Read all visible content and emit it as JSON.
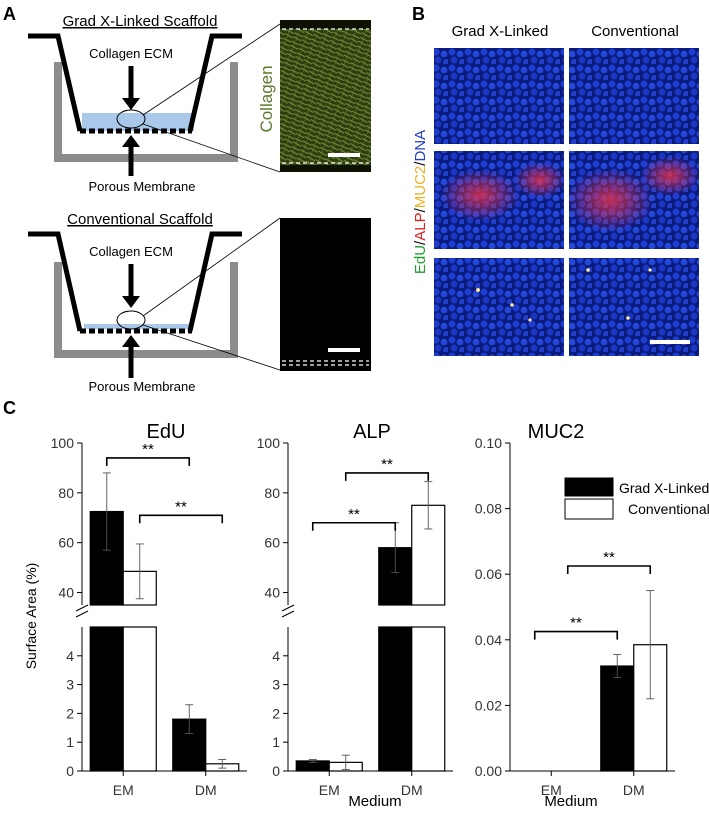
{
  "panel_a": {
    "letter": "A",
    "top_title": "Grad X-Linked Scaffold",
    "bottom_title": "Conventional Scaffold",
    "ecm_label": "Collagen ECM",
    "membrane_label": "Porous Membrane",
    "image_label": "Collagen"
  },
  "panel_b": {
    "letter": "B",
    "col_grad": "Grad X-Linked",
    "col_conv": "Conventional",
    "stain_edu": "EdU",
    "stain_alp": "ALP",
    "stain_muc2": "MUC2",
    "stain_dna": "DNA",
    "sep": "/"
  },
  "panel_c": {
    "letter": "C",
    "sig": "**",
    "ylabel": "Surface Area (%)",
    "xlabel": "Medium",
    "legend": [
      "Grad X-Linked",
      "Conventional"
    ]
  },
  "colors": {
    "grad": "#000000",
    "conv": "#ffffff",
    "collagen": "#5a7a2a",
    "edu": "#1fa02a",
    "alp": "#e0201e",
    "muc2": "#f0b020",
    "dna": "#2040c0",
    "ecm_fill": "#a9c8ea"
  },
  "chart_data": [
    {
      "type": "bar",
      "title": "EdU",
      "categories": [
        "EM",
        "DM"
      ],
      "ylabel": "Surface Area (%)",
      "y_axis_broken": true,
      "lower_ylim": [
        0,
        5
      ],
      "upper_ylim": [
        35,
        100
      ],
      "lower_ticks": [
        0,
        1,
        2,
        3,
        4
      ],
      "upper_ticks": [
        40,
        60,
        80,
        100
      ],
      "series": [
        {
          "name": "Grad X-Linked",
          "values": [
            72.5,
            1.8
          ],
          "errors": [
            15.5,
            0.5
          ]
        },
        {
          "name": "Conventional",
          "values": [
            48.5,
            0.25
          ],
          "errors": [
            11,
            0.15
          ]
        }
      ],
      "annotations": [
        {
          "label": "**",
          "from": [
            "EM",
            0
          ],
          "to": [
            "DM",
            0
          ],
          "y": 94
        },
        {
          "label": "**",
          "from": [
            "EM",
            1
          ],
          "to": [
            "DM",
            1
          ],
          "y": 71
        }
      ]
    },
    {
      "type": "bar",
      "title": "ALP",
      "categories": [
        "EM",
        "DM"
      ],
      "xlabel": "Medium",
      "y_axis_broken": true,
      "lower_ylim": [
        0,
        5
      ],
      "upper_ylim": [
        35,
        100
      ],
      "lower_ticks": [
        0,
        1,
        2,
        3,
        4
      ],
      "upper_ticks": [
        40,
        60,
        80,
        100
      ],
      "series": [
        {
          "name": "Grad X-Linked",
          "values": [
            0.35,
            58
          ],
          "errors": [
            0.05,
            10
          ]
        },
        {
          "name": "Conventional",
          "values": [
            0.3,
            75
          ],
          "errors": [
            0.25,
            9.5
          ]
        }
      ],
      "annotations": [
        {
          "label": "**",
          "from": [
            "EM",
            0
          ],
          "to": [
            "DM",
            0
          ],
          "y": 68
        },
        {
          "label": "**",
          "from": [
            "EM",
            1
          ],
          "to": [
            "DM",
            1
          ],
          "y": 88
        }
      ]
    },
    {
      "type": "bar",
      "title": "MUC2",
      "categories": [
        "EM",
        "DM"
      ],
      "xlabel": "Medium",
      "ylim": [
        0,
        0.1
      ],
      "ticks": [
        "0.00",
        "0.02",
        "0.04",
        "0.06",
        "0.08",
        "0.10"
      ],
      "legend_position": "top-right",
      "series": [
        {
          "name": "Grad X-Linked",
          "values": [
            0,
            0.032
          ],
          "errors": [
            0,
            0.0035
          ]
        },
        {
          "name": "Conventional",
          "values": [
            0,
            0.0385
          ],
          "errors": [
            0,
            0.0165
          ]
        }
      ],
      "annotations": [
        {
          "label": "**",
          "from": [
            "EM",
            0
          ],
          "to": [
            "DM",
            0
          ],
          "y": 0.0425
        },
        {
          "label": "**",
          "from": [
            "EM",
            1
          ],
          "to": [
            "DM",
            1
          ],
          "y": 0.0625
        }
      ]
    }
  ]
}
